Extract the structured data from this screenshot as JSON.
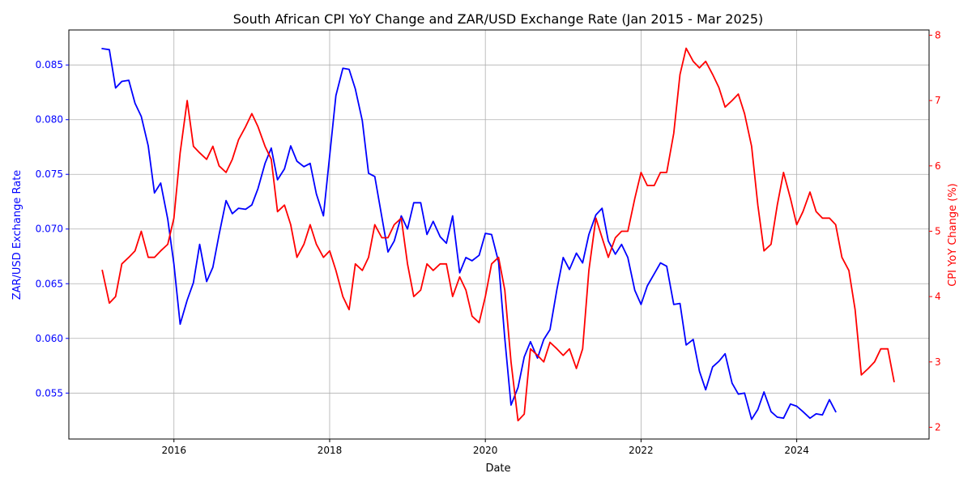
{
  "chart_data": {
    "type": "line",
    "title": "South African CPI YoY Change and ZAR/USD Exchange Rate (Jan 2015 - Mar 2025)",
    "xlabel": "Date",
    "ylabel_left": "ZAR/USD Exchange Rate",
    "ylabel_right": "CPI YoY Change (%)",
    "x_ticks": [
      "2016",
      "2018",
      "2020",
      "2022",
      "2024"
    ],
    "y_left_ticks": [
      "0.055",
      "0.060",
      "0.065",
      "0.070",
      "0.075",
      "0.080",
      "0.085"
    ],
    "y_right_ticks": [
      "2",
      "3",
      "4",
      "5",
      "6",
      "7",
      "8"
    ],
    "x_range": [
      2014.65,
      2025.7
    ],
    "y_left_range": [
      0.0508,
      0.0882
    ],
    "y_right_range": [
      1.82,
      8.08
    ],
    "grid": true,
    "colors": {
      "left": "#0000ff",
      "right": "#ff0000"
    },
    "series": [
      {
        "axis": "left",
        "color": "#0000ff",
        "x": [
          2015.08,
          2015.17,
          2015.25,
          2015.33,
          2015.42,
          2015.5,
          2015.58,
          2015.67,
          2015.75,
          2015.83,
          2015.92,
          2016.0,
          2016.08,
          2016.17,
          2016.25,
          2016.33,
          2016.42,
          2016.5,
          2016.58,
          2016.67,
          2016.75,
          2016.83,
          2016.92,
          2017.0,
          2017.08,
          2017.17,
          2017.25,
          2017.33,
          2017.42,
          2017.5,
          2017.58,
          2017.67,
          2017.75,
          2017.83,
          2017.92,
          2018.0,
          2018.08,
          2018.17,
          2018.25,
          2018.33,
          2018.42,
          2018.5,
          2018.58,
          2018.67,
          2018.75,
          2018.83,
          2018.92,
          2019.0,
          2019.08,
          2019.17,
          2019.25,
          2019.33,
          2019.42,
          2019.5,
          2019.58,
          2019.67,
          2019.75,
          2019.83,
          2019.92,
          2020.0,
          2020.08,
          2020.17,
          2020.25,
          2020.33,
          2020.42,
          2020.5,
          2020.58,
          2020.67,
          2020.75,
          2020.83,
          2020.92,
          2021.0,
          2021.08,
          2021.17,
          2021.25,
          2021.33,
          2021.42,
          2021.5,
          2021.58,
          2021.67,
          2021.75,
          2021.83,
          2021.92,
          2022.0,
          2022.08,
          2022.17,
          2022.25,
          2022.33,
          2022.42,
          2022.5,
          2022.58,
          2022.67,
          2022.75,
          2022.83,
          2022.92,
          2023.0,
          2023.08,
          2023.17,
          2023.25,
          2023.33,
          2023.42,
          2023.5,
          2023.58,
          2023.67,
          2023.75,
          2023.83,
          2023.92,
          2024.0,
          2024.08,
          2024.17,
          2024.25,
          2024.33,
          2024.42,
          2024.5
        ],
        "values": [
          0.0865,
          0.0864,
          0.0829,
          0.0835,
          0.0836,
          0.0815,
          0.0803,
          0.0776,
          0.0733,
          0.0742,
          0.0709,
          0.0668,
          0.0613,
          0.0635,
          0.0651,
          0.0686,
          0.0652,
          0.0665,
          0.0695,
          0.0726,
          0.0714,
          0.0719,
          0.0718,
          0.0722,
          0.0737,
          0.076,
          0.0774,
          0.0745,
          0.0755,
          0.0776,
          0.0762,
          0.0757,
          0.076,
          0.0732,
          0.0712,
          0.0767,
          0.0822,
          0.0847,
          0.0846,
          0.0828,
          0.0799,
          0.0751,
          0.0748,
          0.0711,
          0.0679,
          0.0689,
          0.0712,
          0.07,
          0.0724,
          0.0724,
          0.0695,
          0.0707,
          0.0693,
          0.0687,
          0.0712,
          0.066,
          0.0674,
          0.0671,
          0.0676,
          0.0696,
          0.0695,
          0.067,
          0.06,
          0.0539,
          0.0555,
          0.0583,
          0.0597,
          0.0582,
          0.0599,
          0.0608,
          0.0645,
          0.0674,
          0.0663,
          0.0678,
          0.0669,
          0.0695,
          0.0713,
          0.0719,
          0.0689,
          0.0677,
          0.0686,
          0.0674,
          0.0644,
          0.0631,
          0.0648,
          0.0659,
          0.0669,
          0.0666,
          0.0631,
          0.0632,
          0.0594,
          0.0599,
          0.057,
          0.0553,
          0.0574,
          0.0579,
          0.0586,
          0.0559,
          0.0549,
          0.055,
          0.0526,
          0.0535,
          0.0551,
          0.0533,
          0.0528,
          0.0527,
          0.054,
          0.0538,
          0.0533,
          0.0527,
          0.0531,
          0.053,
          0.0544,
          0.0533
        ]
      },
      {
        "axis": "right",
        "color": "#ff0000",
        "x": [
          2015.08,
          2015.17,
          2015.25,
          2015.33,
          2015.42,
          2015.5,
          2015.58,
          2015.67,
          2015.75,
          2015.83,
          2015.92,
          2016.0,
          2016.08,
          2016.17,
          2016.25,
          2016.33,
          2016.42,
          2016.5,
          2016.58,
          2016.67,
          2016.75,
          2016.83,
          2016.92,
          2017.0,
          2017.08,
          2017.17,
          2017.25,
          2017.33,
          2017.42,
          2017.5,
          2017.58,
          2017.67,
          2017.75,
          2017.83,
          2017.92,
          2018.0,
          2018.08,
          2018.17,
          2018.25,
          2018.33,
          2018.42,
          2018.5,
          2018.58,
          2018.67,
          2018.75,
          2018.83,
          2018.92,
          2019.0,
          2019.08,
          2019.17,
          2019.25,
          2019.33,
          2019.42,
          2019.5,
          2019.58,
          2019.67,
          2019.75,
          2019.83,
          2019.92,
          2020.0,
          2020.08,
          2020.17,
          2020.25,
          2020.33,
          2020.42,
          2020.5,
          2020.58,
          2020.67,
          2020.75,
          2020.83,
          2020.92,
          2021.0,
          2021.08,
          2021.17,
          2021.25,
          2021.33,
          2021.42,
          2021.5,
          2021.58,
          2021.67,
          2021.75,
          2021.83,
          2021.92,
          2022.0,
          2022.08,
          2022.17,
          2022.25,
          2022.33,
          2022.42,
          2022.5,
          2022.58,
          2022.67,
          2022.75,
          2022.83,
          2022.92,
          2023.0,
          2023.08,
          2023.17,
          2023.25,
          2023.33,
          2023.42,
          2023.5,
          2023.58,
          2023.67,
          2023.75,
          2023.83,
          2023.92,
          2024.0,
          2024.08,
          2024.17,
          2024.25,
          2024.33,
          2024.42,
          2024.5,
          2024.58,
          2024.67,
          2024.75,
          2024.83,
          2024.92,
          2025.0,
          2025.08,
          2025.17,
          2025.25
        ],
        "values": [
          4.4,
          3.9,
          4.0,
          4.5,
          4.6,
          4.7,
          5.0,
          4.6,
          4.6,
          4.7,
          4.8,
          5.2,
          6.2,
          7.0,
          6.3,
          6.2,
          6.1,
          6.3,
          6.0,
          5.9,
          6.1,
          6.4,
          6.6,
          6.8,
          6.6,
          6.3,
          6.1,
          5.3,
          5.4,
          5.1,
          4.6,
          4.8,
          5.1,
          4.8,
          4.6,
          4.7,
          4.4,
          4.0,
          3.8,
          4.5,
          4.4,
          4.6,
          5.1,
          4.9,
          4.9,
          5.1,
          5.2,
          4.5,
          4.0,
          4.1,
          4.5,
          4.4,
          4.5,
          4.5,
          4.0,
          4.3,
          4.1,
          3.7,
          3.6,
          4.0,
          4.5,
          4.6,
          4.1,
          3.0,
          2.1,
          2.2,
          3.2,
          3.1,
          3.0,
          3.3,
          3.2,
          3.1,
          3.2,
          2.9,
          3.2,
          4.4,
          5.2,
          4.9,
          4.6,
          4.9,
          5.0,
          5.0,
          5.5,
          5.9,
          5.7,
          5.7,
          5.9,
          5.9,
          6.5,
          7.4,
          7.8,
          7.6,
          7.5,
          7.6,
          7.4,
          7.2,
          6.9,
          7.0,
          7.1,
          6.8,
          6.3,
          5.4,
          4.7,
          4.8,
          5.4,
          5.9,
          5.5,
          5.1,
          5.3,
          5.6,
          5.3,
          5.2,
          5.2,
          5.1,
          4.6,
          4.4,
          3.8,
          2.8,
          2.9,
          3.0,
          3.2,
          3.2,
          2.7
        ]
      }
    ]
  }
}
